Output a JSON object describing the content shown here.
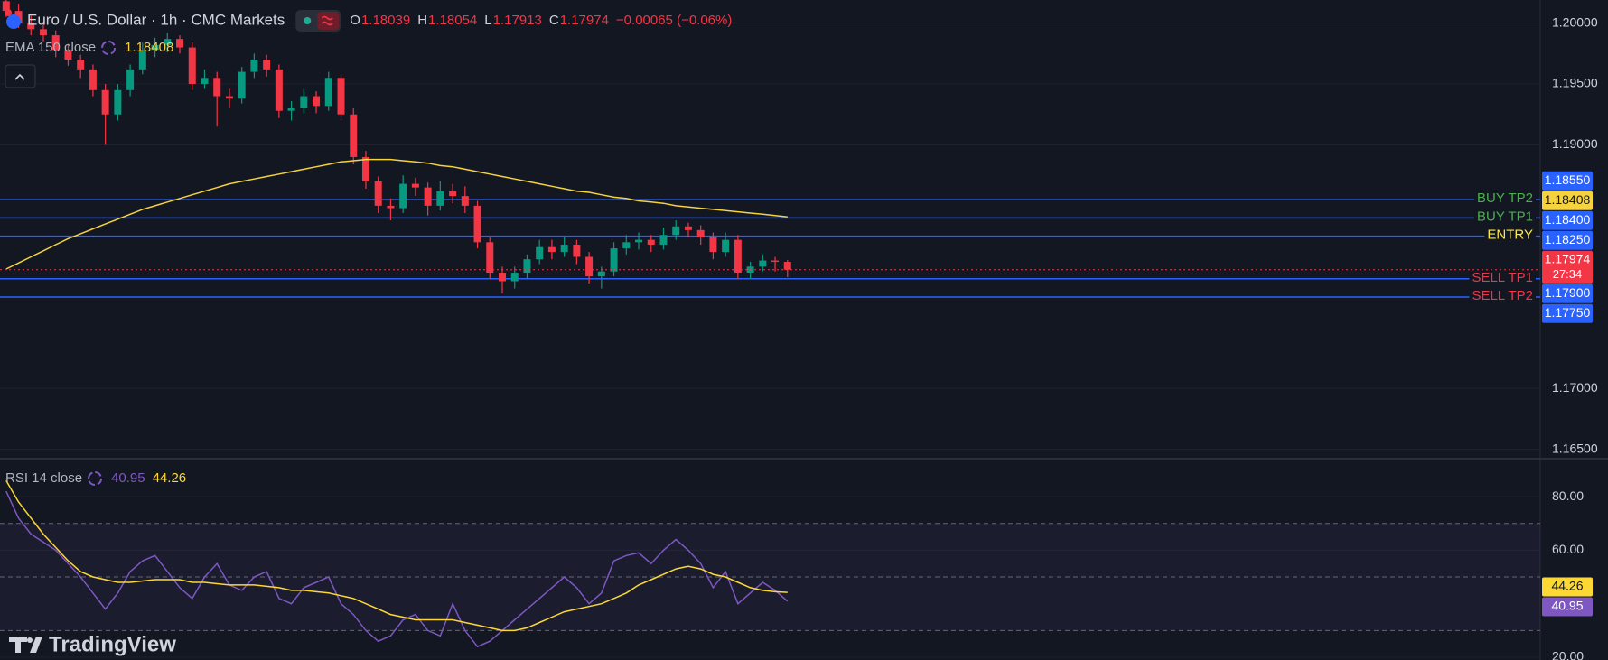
{
  "chart_data": {
    "type": "candlestick",
    "title": "Euro / U.S. Dollar · 1h · CMC Markets",
    "ohlc_keys": [
      "O",
      "H",
      "L",
      "C"
    ],
    "change": "−0.00065 (−0.06%)",
    "up_color": "#089981",
    "down_color": "#f23645",
    "ylim": [
      1.1643,
      1.2019
    ],
    "yticks": [
      {
        "value": 1.2,
        "label": "1.20000"
      },
      {
        "value": 1.195,
        "label": "1.19500"
      },
      {
        "value": 1.19,
        "label": "1.19000"
      },
      {
        "value": 1.17,
        "label": "1.17000"
      },
      {
        "value": 1.165,
        "label": "1.16500"
      }
    ],
    "grid": true,
    "candles": [
      [
        1.2018,
        1.2025,
        1.2005,
        1.201
      ],
      [
        1.201,
        1.2016,
        1.1996,
        1.2
      ],
      [
        1.2,
        1.2006,
        1.199,
        1.1995
      ],
      [
        1.1995,
        1.2001,
        1.1985,
        1.199
      ],
      [
        1.199,
        1.1994,
        1.1972,
        1.1978
      ],
      [
        1.1978,
        1.1983,
        1.1965,
        1.197
      ],
      [
        1.197,
        1.1974,
        1.1955,
        1.1962
      ],
      [
        1.1962,
        1.1966,
        1.194,
        1.1945
      ],
      [
        1.1945,
        1.195,
        1.19,
        1.1925
      ],
      [
        1.1925,
        1.195,
        1.192,
        1.1945
      ],
      [
        1.1945,
        1.1966,
        1.194,
        1.1962
      ],
      [
        1.1962,
        1.1984,
        1.1958,
        1.1978
      ],
      [
        1.1978,
        1.1988,
        1.1972,
        1.1982
      ],
      [
        1.1982,
        1.1992,
        1.1976,
        1.1987
      ],
      [
        1.1987,
        1.199,
        1.1975,
        1.198
      ],
      [
        1.198,
        1.1984,
        1.1945,
        1.195
      ],
      [
        1.195,
        1.1962,
        1.1946,
        1.1955
      ],
      [
        1.1955,
        1.196,
        1.1915,
        1.194
      ],
      [
        1.194,
        1.1946,
        1.193,
        1.1938
      ],
      [
        1.1938,
        1.1964,
        1.1934,
        1.196
      ],
      [
        1.196,
        1.1975,
        1.1955,
        1.197
      ],
      [
        1.197,
        1.1974,
        1.1956,
        1.1962
      ],
      [
        1.1962,
        1.1966,
        1.1922,
        1.1928
      ],
      [
        1.1928,
        1.1936,
        1.192,
        1.193
      ],
      [
        1.193,
        1.1946,
        1.1926,
        1.194
      ],
      [
        1.194,
        1.1944,
        1.1926,
        1.1932
      ],
      [
        1.1932,
        1.196,
        1.1928,
        1.1955
      ],
      [
        1.1955,
        1.1958,
        1.192,
        1.1925
      ],
      [
        1.1925,
        1.193,
        1.1884,
        1.189
      ],
      [
        1.189,
        1.1895,
        1.1864,
        1.187
      ],
      [
        1.187,
        1.1874,
        1.1844,
        1.185
      ],
      [
        1.185,
        1.1856,
        1.1838,
        1.1848
      ],
      [
        1.1848,
        1.1875,
        1.1844,
        1.1868
      ],
      [
        1.1868,
        1.1873,
        1.1858,
        1.1865
      ],
      [
        1.1865,
        1.1869,
        1.1842,
        1.185
      ],
      [
        1.185,
        1.187,
        1.1846,
        1.1862
      ],
      [
        1.1862,
        1.1868,
        1.1852,
        1.1858
      ],
      [
        1.1858,
        1.1866,
        1.1844,
        1.185
      ],
      [
        1.185,
        1.1854,
        1.1815,
        1.182
      ],
      [
        1.182,
        1.1824,
        1.179,
        1.1795
      ],
      [
        1.1795,
        1.18,
        1.1778,
        1.1788
      ],
      [
        1.1788,
        1.18,
        1.1782,
        1.1795
      ],
      [
        1.1795,
        1.181,
        1.179,
        1.1806
      ],
      [
        1.1806,
        1.1822,
        1.1802,
        1.1816
      ],
      [
        1.1816,
        1.1822,
        1.1806,
        1.1812
      ],
      [
        1.1812,
        1.1824,
        1.1808,
        1.1818
      ],
      [
        1.1818,
        1.1822,
        1.1802,
        1.1808
      ],
      [
        1.1808,
        1.1812,
        1.1786,
        1.1792
      ],
      [
        1.1792,
        1.18,
        1.1782,
        1.1796
      ],
      [
        1.1796,
        1.182,
        1.1792,
        1.1815
      ],
      [
        1.1815,
        1.1826,
        1.181,
        1.182
      ],
      [
        1.182,
        1.1828,
        1.1814,
        1.1822
      ],
      [
        1.1822,
        1.1826,
        1.1812,
        1.1818
      ],
      [
        1.1818,
        1.1832,
        1.1814,
        1.1826
      ],
      [
        1.1826,
        1.1838,
        1.1822,
        1.1833
      ],
      [
        1.1833,
        1.1836,
        1.1824,
        1.183
      ],
      [
        1.183,
        1.1834,
        1.1818,
        1.1824
      ],
      [
        1.1824,
        1.1828,
        1.1806,
        1.1812
      ],
      [
        1.1812,
        1.1828,
        1.1808,
        1.1822
      ],
      [
        1.1822,
        1.1826,
        1.179,
        1.1795
      ],
      [
        1.1795,
        1.1804,
        1.179,
        1.18
      ],
      [
        1.18,
        1.181,
        1.1796,
        1.1805
      ],
      [
        1.1805,
        1.1808,
        1.1796,
        1.18039
      ],
      [
        1.18039,
        1.18054,
        1.17913,
        1.17974
      ]
    ],
    "ema": {
      "name": "EMA 150 close",
      "color": "#f5d33f",
      "values": [
        1.1798,
        1.1803,
        1.1808,
        1.1813,
        1.1818,
        1.1823,
        1.1827,
        1.1831,
        1.1835,
        1.1839,
        1.1843,
        1.1847,
        1.185,
        1.1853,
        1.1856,
        1.1859,
        1.1862,
        1.1865,
        1.1868,
        1.187,
        1.1872,
        1.1874,
        1.1876,
        1.1878,
        1.188,
        1.1882,
        1.1884,
        1.1886,
        1.1887,
        1.1888,
        1.1888,
        1.1888,
        1.1887,
        1.1886,
        1.1885,
        1.1883,
        1.1882,
        1.188,
        1.1878,
        1.1876,
        1.1874,
        1.1872,
        1.187,
        1.1868,
        1.1866,
        1.1864,
        1.1862,
        1.1861,
        1.1859,
        1.1857,
        1.1856,
        1.1854,
        1.1853,
        1.1852,
        1.185,
        1.1849,
        1.1848,
        1.1847,
        1.1846,
        1.1845,
        1.1844,
        1.1843,
        1.1842,
        1.18408
      ]
    },
    "levels": [
      {
        "name": "BUY TP2",
        "value": 1.1855,
        "label": "1.18550",
        "color": "#4caf50"
      },
      {
        "name": "BUY TP1",
        "value": 1.184,
        "label": "1.18400",
        "color": "#4caf50"
      },
      {
        "name": "ENTRY",
        "value": 1.1825,
        "label": "1.18250",
        "color": "#ffeb3b"
      },
      {
        "name": "SELL TP1",
        "value": 1.179,
        "label": "1.17900",
        "color": "#f23645"
      },
      {
        "name": "SELL TP2",
        "value": 1.1775,
        "label": "1.17750",
        "color": "#f23645"
      }
    ],
    "level_line_color": "#2962ff",
    "countdown": "27:34",
    "rsi": {
      "name": "RSI 14 close",
      "ylim": [
        19,
        93.5
      ],
      "yticks": [
        {
          "value": 80,
          "label": "80.00"
        },
        {
          "value": 60,
          "label": "60.00"
        },
        {
          "value": 20,
          "label": "20.00"
        }
      ],
      "bands": [
        70,
        50,
        30
      ],
      "series": [
        {
          "color": "#7e57c2",
          "values": [
            82,
            72,
            66,
            63,
            60,
            55,
            50,
            44,
            38,
            44,
            52,
            56,
            58,
            52,
            46,
            42,
            50,
            55,
            47,
            45,
            50,
            52,
            42,
            40,
            46,
            48,
            50,
            40,
            36,
            30,
            26,
            28,
            34,
            36,
            30,
            28,
            40,
            30,
            24,
            26,
            30,
            34,
            38,
            42,
            46,
            50,
            46,
            40,
            44,
            56,
            58,
            59,
            55,
            60,
            64,
            60,
            55,
            46,
            52,
            40,
            44,
            48,
            45,
            40.95
          ]
        },
        {
          "color": "#fdd835",
          "values": [
            86,
            78,
            72,
            66,
            61,
            56,
            52,
            50,
            49,
            48,
            48,
            48.5,
            49,
            49,
            49,
            48,
            48,
            47.5,
            47,
            47,
            47,
            46.5,
            46,
            45,
            45,
            44.5,
            44,
            43,
            42,
            40,
            38,
            36,
            35,
            34,
            34,
            34,
            34,
            33,
            32,
            31,
            30,
            30,
            31,
            33,
            35,
            37,
            38,
            39,
            40,
            42,
            44,
            47,
            49,
            51,
            53,
            54,
            53,
            51,
            50,
            48,
            46,
            45,
            44.5,
            44.26
          ]
        }
      ]
    },
    "brand": "TradingView"
  }
}
